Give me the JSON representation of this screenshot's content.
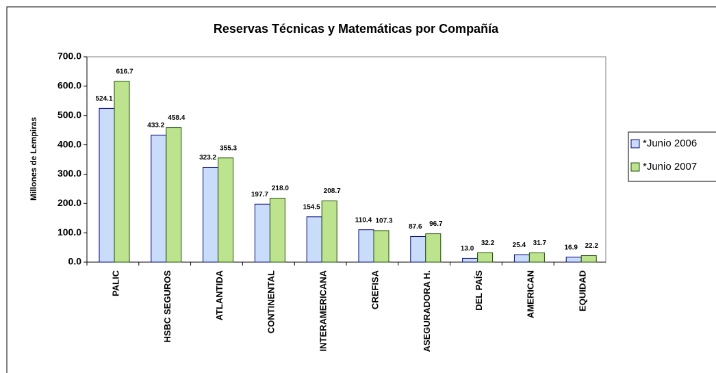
{
  "chart_data": {
    "type": "bar",
    "title": "Reservas Técnicas y Matemáticas por Compañía",
    "y_label": "Millones de Lempiras",
    "categories": [
      "PALIC",
      "HSBC SEGUROS",
      "ATLANTIDA",
      "CONTINENTAL",
      "INTERAMERICANA",
      "CREFISA",
      "ASEGURADORA H.",
      "DEL PAÍS",
      "AMERICAN",
      "EQUIDAD"
    ],
    "series": [
      {
        "name": "*Junio 2006",
        "color": "#c9dcfa",
        "values": [
          524.1,
          433.2,
          323.2,
          197.7,
          154.5,
          110.4,
          87.6,
          13.0,
          25.4,
          16.9
        ],
        "value_labels": [
          "524.1",
          "433.2",
          "323.2",
          "197.7",
          "154.5",
          "110.4",
          "87.6",
          "13.0",
          "25.4",
          "16.9"
        ]
      },
      {
        "name": "*Junio 2007",
        "color": "#bde38f",
        "values": [
          616.7,
          458.4,
          355.3,
          218.0,
          208.7,
          107.3,
          96.7,
          32.2,
          31.7,
          22.2
        ],
        "value_labels": [
          "616.7",
          "458.4",
          "355.3",
          "218.0",
          "208.7",
          "107.3",
          "96.7",
          "32.2",
          "31.7",
          "22.2"
        ]
      }
    ],
    "ylim": [
      0,
      700
    ],
    "yticks": [
      {
        "value": 0,
        "label": "0.0"
      },
      {
        "value": 100,
        "label": "100.0"
      },
      {
        "value": 200,
        "label": "200.0"
      },
      {
        "value": 300,
        "label": "300.0"
      },
      {
        "value": 400,
        "label": "400.0"
      },
      {
        "value": 500,
        "label": "500.0"
      },
      {
        "value": 600,
        "label": "600.0"
      },
      {
        "value": 700,
        "label": "700.0"
      }
    ],
    "legend": "right"
  }
}
